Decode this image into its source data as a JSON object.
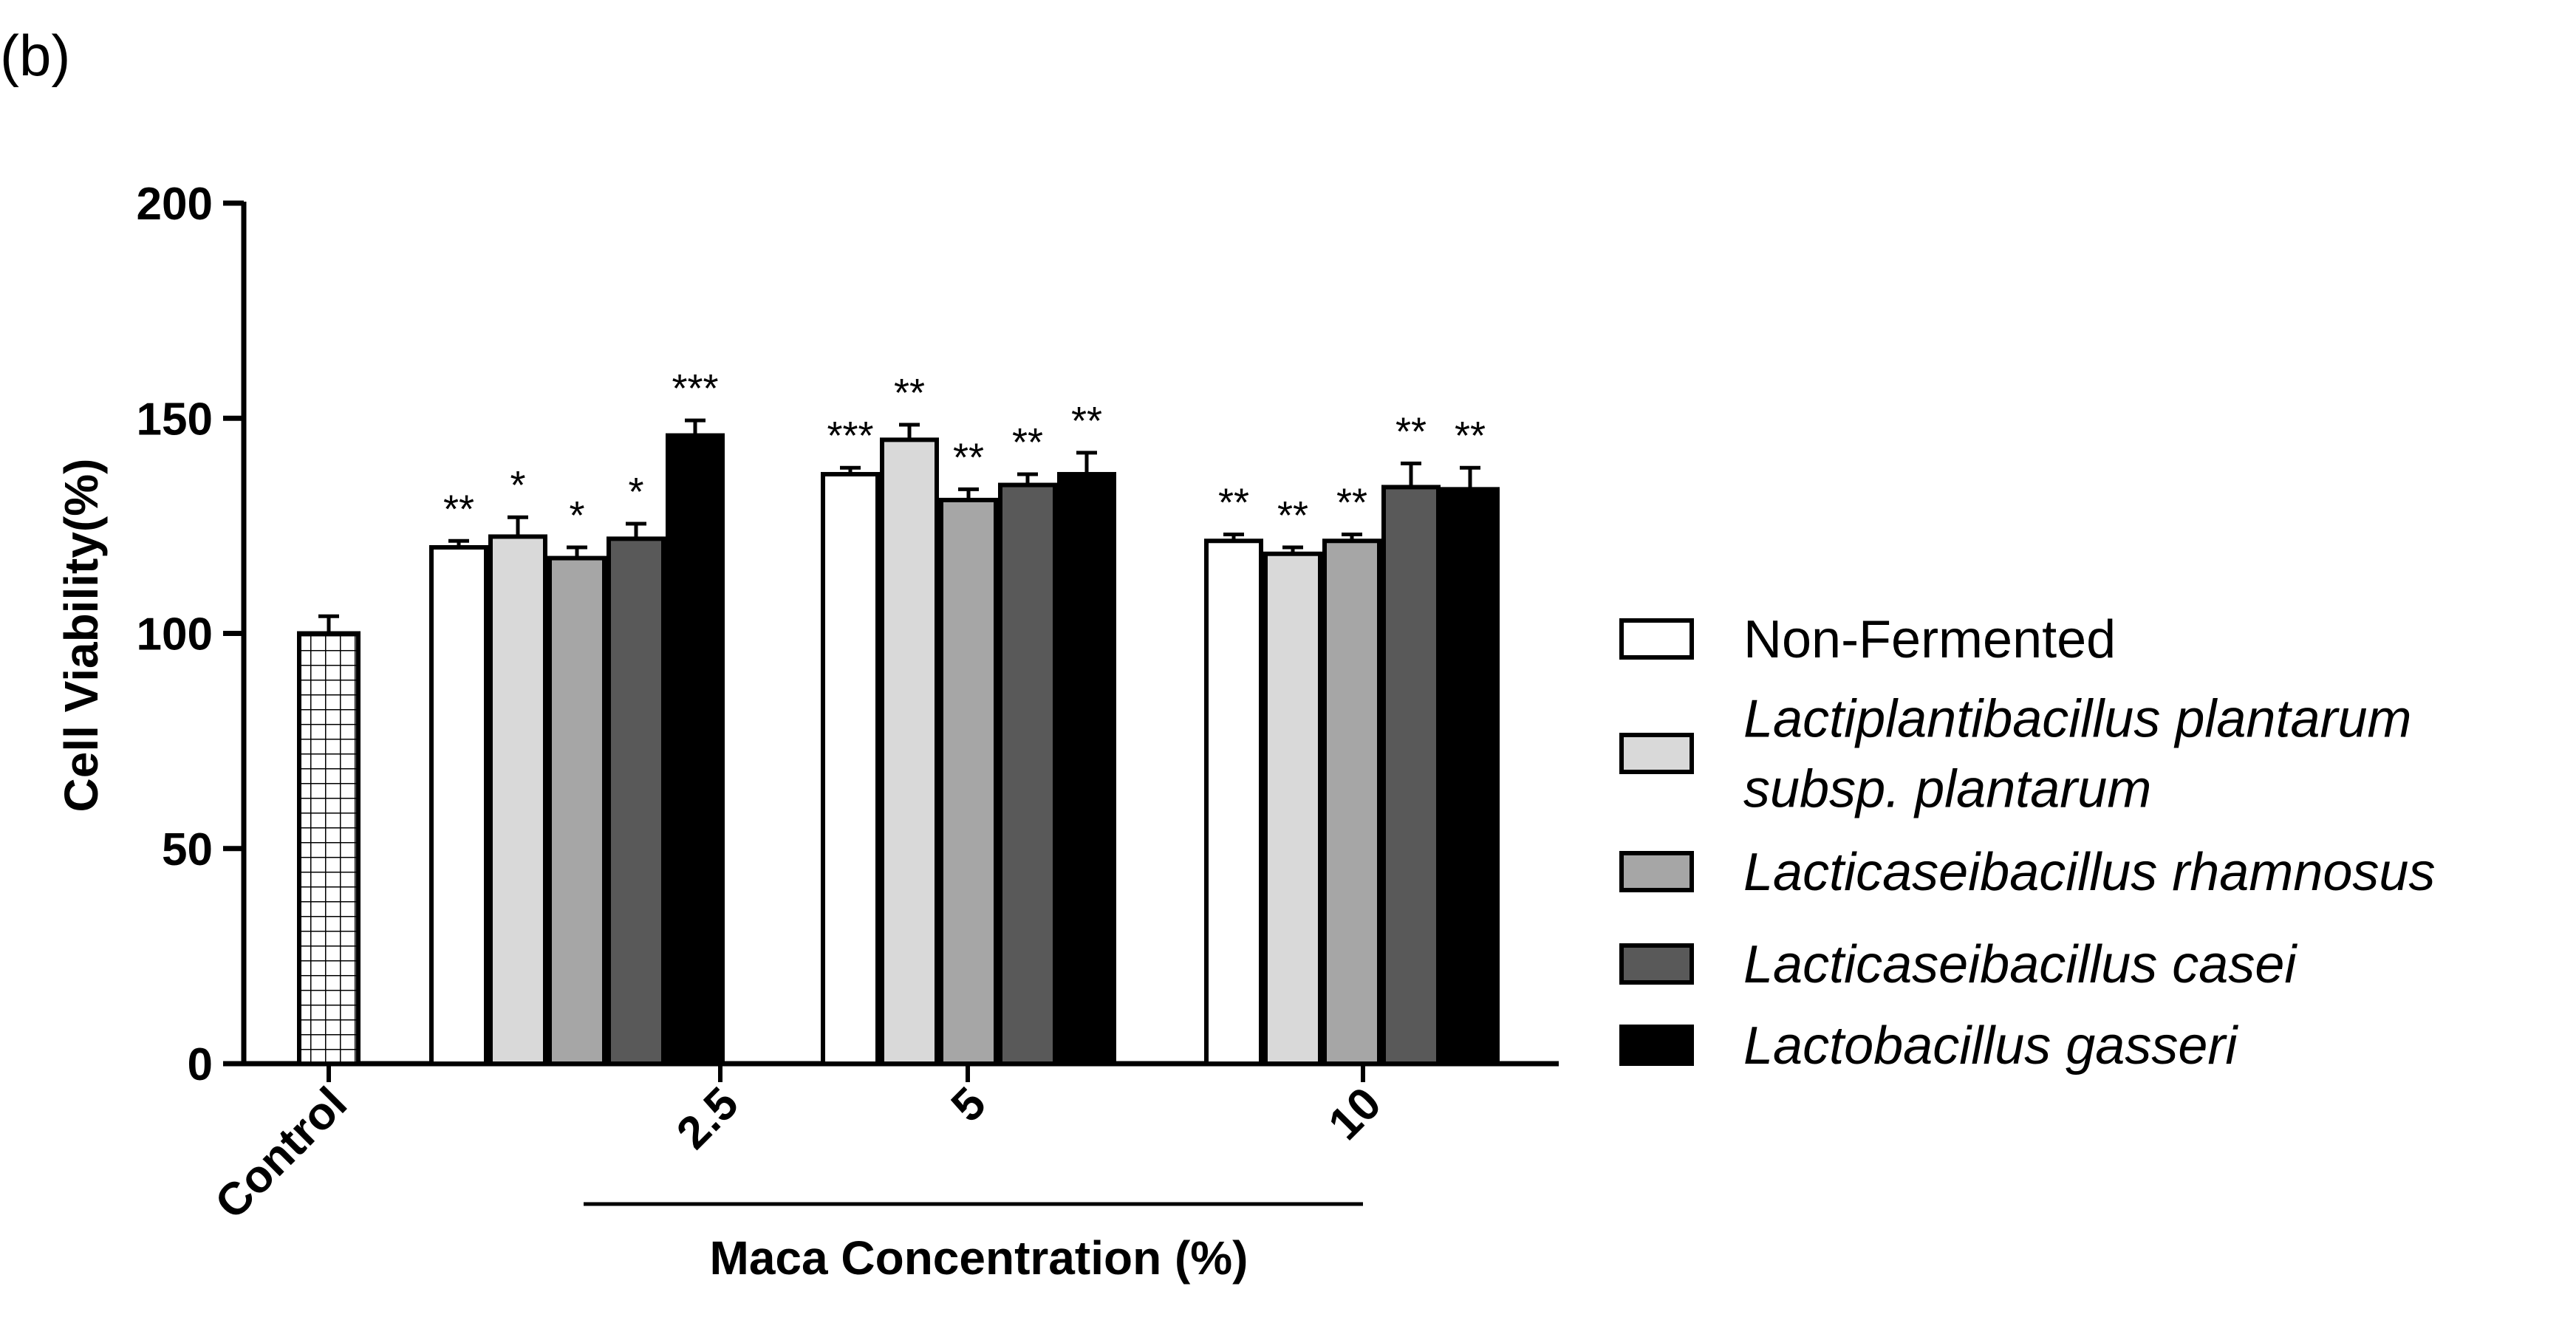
{
  "panel_label": "(b)",
  "chart_data": {
    "type": "bar",
    "ylabel": "Cell Viability(%)",
    "xlabel": "Maca Concentration (%)",
    "ylim": [
      0,
      200
    ],
    "yticks": [
      0,
      50,
      100,
      150,
      200
    ],
    "categories": [
      "Control",
      "2.5",
      "5",
      "10"
    ],
    "control": {
      "name": "Control",
      "value": 100,
      "error": 4,
      "color": "#ffffff",
      "pattern": "grid"
    },
    "series": [
      {
        "name": "Non-Fermented",
        "color": "#ffffff",
        "values": [
          null,
          120,
          137,
          121.5
        ],
        "errors": [
          null,
          1.5,
          1.5,
          1.5
        ],
        "significance": [
          null,
          "**",
          "***",
          "**"
        ]
      },
      {
        "name": "Lactiplantibacillus plantarum subsp. plantarum",
        "color": "#d9d9d9",
        "values": [
          null,
          122.5,
          145,
          118.5
        ],
        "errors": [
          null,
          4.5,
          3.5,
          1.5
        ],
        "significance": [
          null,
          "*",
          "**",
          "**"
        ]
      },
      {
        "name": "Lacticaseibacillus rhamnosus",
        "color": "#a6a6a6",
        "values": [
          null,
          117.5,
          131,
          121.5
        ],
        "errors": [
          null,
          2.5,
          2.5,
          1.5
        ],
        "significance": [
          null,
          "*",
          "**",
          "**"
        ]
      },
      {
        "name": "Lacticaseibacillus casei",
        "color": "#595959",
        "values": [
          null,
          122,
          134.5,
          134
        ],
        "errors": [
          null,
          3.5,
          2.5,
          5.5
        ],
        "significance": [
          null,
          "*",
          "**",
          "**"
        ]
      },
      {
        "name": "Lactobacillus gasseri",
        "color": "#000000",
        "values": [
          null,
          146,
          137,
          133.5
        ],
        "errors": [
          null,
          3.5,
          5,
          5
        ],
        "significance": [
          null,
          "***",
          "**",
          "**"
        ]
      }
    ],
    "legend": {
      "position": "right",
      "entries": [
        {
          "lines": [
            "Non-Fermented"
          ],
          "italic": false,
          "color": "#ffffff"
        },
        {
          "lines": [
            "Lactiplantibacillus plantarum",
            "subsp. plantarum"
          ],
          "italic": true,
          "color": "#d9d9d9"
        },
        {
          "lines": [
            "Lacticaseibacillus rhamnosus"
          ],
          "italic": true,
          "color": "#a6a6a6"
        },
        {
          "lines": [
            "Lacticaseibacillus casei"
          ],
          "italic": true,
          "color": "#595959"
        },
        {
          "lines": [
            "Lactobacillus gasseri"
          ],
          "italic": true,
          "color": "#000000"
        }
      ]
    }
  }
}
